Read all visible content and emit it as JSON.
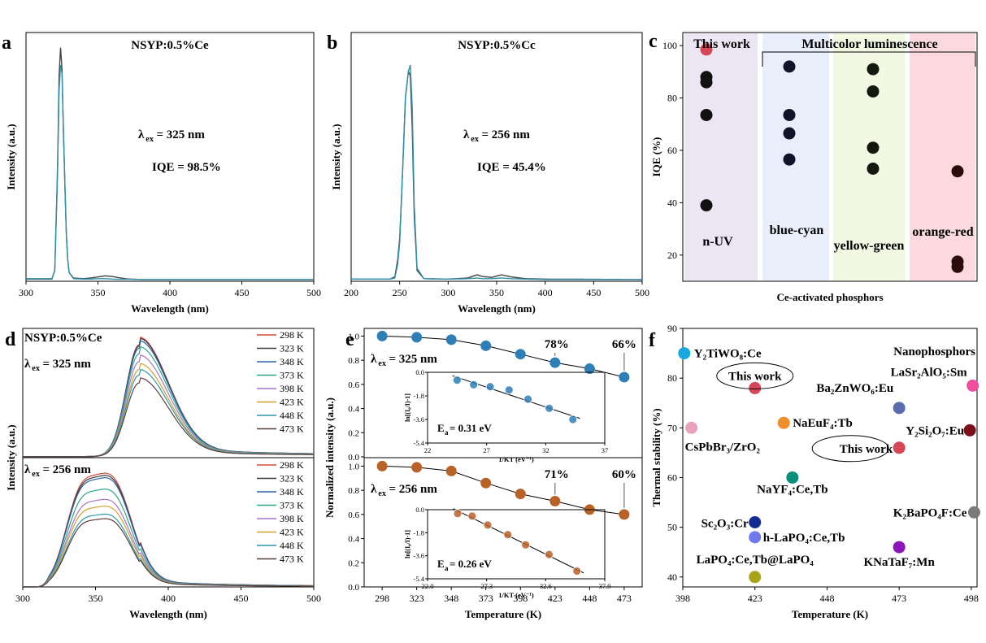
{
  "chart_data": [
    {
      "id": "a",
      "type": "line",
      "panel_letter": "a",
      "title": "NSYP:0.5%Ce",
      "xlabel": "Wavelength (nm)",
      "ylabel": "Intensity (a.u.)",
      "xlim": [
        300,
        500
      ],
      "ylim": [
        0,
        1.15
      ],
      "xticks": [
        "300",
        "350",
        "400",
        "450",
        "500"
      ],
      "ann": {
        "l": "λ",
        "sub": "ex",
        "r": " = 325 nm",
        "iqe": "IQE = 98.5%"
      },
      "series": [
        {
          "name": "reference",
          "color": "#444444",
          "x": [
            300,
            318,
            320,
            322,
            323,
            324,
            325,
            326,
            327,
            328,
            329,
            330,
            333,
            340,
            345,
            350,
            355,
            360,
            365,
            370,
            380,
            400,
            500
          ],
          "y": [
            0.01,
            0.01,
            0.05,
            0.55,
            0.95,
            1.08,
            0.98,
            0.7,
            0.45,
            0.22,
            0.1,
            0.04,
            0.015,
            0.012,
            0.015,
            0.02,
            0.025,
            0.022,
            0.016,
            0.011,
            0.008,
            0.008,
            0.008
          ]
        },
        {
          "name": "sample",
          "color": "#2f8fa8",
          "x": [
            300,
            318,
            320,
            322,
            323,
            324,
            325,
            326,
            327,
            328,
            329,
            330,
            333,
            340,
            345,
            350,
            355,
            360,
            365,
            370,
            380,
            400,
            500
          ],
          "y": [
            0.012,
            0.012,
            0.05,
            0.52,
            0.88,
            1.0,
            0.96,
            0.7,
            0.45,
            0.22,
            0.1,
            0.04,
            0.012,
            0.01,
            0.01,
            0.012,
            0.012,
            0.01,
            0.009,
            0.009,
            0.008,
            0.008,
            0.008
          ]
        }
      ]
    },
    {
      "id": "b",
      "type": "line",
      "panel_letter": "b",
      "title": "NSYP:0.5%Cc",
      "xlabel": "Wavelength (nm)",
      "ylabel": "Intensity (a.u.)",
      "xlim": [
        200,
        500
      ],
      "ylim": [
        0,
        1.15
      ],
      "xticks": [
        "200",
        "250",
        "300",
        "350",
        "400",
        "450",
        "500"
      ],
      "ann": {
        "l": "λ",
        "sub": "ex",
        "r": " = 256 nm",
        "iqe": "IQE = 45.4%"
      },
      "series": [
        {
          "name": "reference",
          "color": "#444444",
          "x": [
            200,
            240,
            245,
            248,
            250,
            253,
            256,
            259,
            261,
            263,
            265,
            268,
            275,
            300,
            320,
            330,
            335,
            345,
            355,
            365,
            380,
            400,
            500
          ],
          "y": [
            0.01,
            0.01,
            0.02,
            0.1,
            0.2,
            0.5,
            0.85,
            0.97,
            0.95,
            0.7,
            0.3,
            0.05,
            0.012,
            0.01,
            0.015,
            0.03,
            0.022,
            0.018,
            0.03,
            0.02,
            0.012,
            0.01,
            0.008
          ]
        },
        {
          "name": "sample",
          "color": "#2f8fa8",
          "x": [
            200,
            240,
            245,
            248,
            250,
            253,
            256,
            259,
            261,
            263,
            265,
            268,
            275,
            300,
            320,
            330,
            335,
            345,
            355,
            365,
            380,
            400,
            500
          ],
          "y": [
            0.01,
            0.01,
            0.015,
            0.08,
            0.18,
            0.5,
            0.85,
            0.97,
            1.0,
            0.8,
            0.35,
            0.06,
            0.012,
            0.01,
            0.012,
            0.015,
            0.012,
            0.012,
            0.015,
            0.012,
            0.01,
            0.008,
            0.008
          ]
        }
      ]
    },
    {
      "id": "c",
      "type": "scatter",
      "panel_letter": "c",
      "ylabel": "IQE (%)",
      "xlabel": "Ce-activated phosphors",
      "ylim": [
        10,
        105
      ],
      "yticks": [
        20,
        40,
        60,
        80,
        100
      ],
      "top_label": "Multicolor luminescence",
      "regions": [
        {
          "name": "n-UV",
          "header": "This work",
          "color": "#ece5f3",
          "marker": "#111111",
          "values": [
            98.5,
            88,
            86,
            73.5,
            39
          ]
        },
        {
          "name": "blue-cyan",
          "color": "#e8eefa",
          "marker": "#10142a",
          "values": [
            92,
            73.5,
            66.5,
            56.5
          ]
        },
        {
          "name": "yellow-green",
          "color": "#f1f9e3",
          "marker": "#121a10",
          "values": [
            91,
            82.5,
            61,
            53
          ]
        },
        {
          "name": "orange-red",
          "color": "#fbd9dc",
          "marker": "#2a0c0c",
          "values": [
            52,
            17.5,
            15.5
          ]
        }
      ]
    },
    {
      "id": "d1",
      "type": "line",
      "panel_letter": "d",
      "title": "NSYP:0.5%Ce",
      "ann": {
        "l": "λ",
        "sub": "ex",
        "r": " = 325 nm"
      },
      "ylabel": "Intensity (a.u.)",
      "xlim": [
        300,
        500
      ],
      "ylim": [
        0,
        1.15
      ],
      "peak": 380,
      "legend": [
        "298 K",
        "323 K",
        "348 K",
        "373 K",
        "398 K",
        "423 K",
        "448 K",
        "473 K"
      ],
      "scales": [
        1.0,
        0.99,
        0.97,
        0.92,
        0.85,
        0.78,
        0.73,
        0.66
      ]
    },
    {
      "id": "d2",
      "type": "line",
      "ann": {
        "l": "λ",
        "sub": "ex",
        "r": " = 256 nm"
      },
      "xlabel": "Wavelength (nm)",
      "xlim": [
        300,
        500
      ],
      "ylim": [
        0,
        1.15
      ],
      "xticks": [
        "300",
        "350",
        "400",
        "450",
        "500"
      ],
      "legend": [
        "298 K",
        "323 K",
        "348 K",
        "373 K",
        "398 K",
        "423 K",
        "448 K",
        "473 K"
      ],
      "scales": [
        1.0,
        0.98,
        0.96,
        0.86,
        0.77,
        0.71,
        0.64,
        0.6
      ]
    },
    {
      "id": "e1",
      "type": "line",
      "panel_letter": "e",
      "ann": {
        "l": "λ",
        "sub": "ex",
        "r": " = 325 nm"
      },
      "x": [
        298,
        323,
        348,
        373,
        398,
        423,
        448,
        473
      ],
      "y": [
        1.0,
        0.99,
        0.97,
        0.92,
        0.85,
        0.78,
        0.73,
        0.66
      ],
      "ylim": [
        0.0,
        1.05
      ],
      "yticks": [
        "0.0",
        "0.2",
        "0.4",
        "0.6",
        "0.8",
        "1.0"
      ],
      "labels": [
        "78%",
        "66%"
      ],
      "inset": {
        "xlabel": "1/KT (eV⁻¹)",
        "ylabel": "ln[(I₀/I)-1]",
        "ea": "E",
        "ea_sub": "a",
        "ea_val": " = 0.31 eV",
        "xlim": [
          22,
          37
        ],
        "ylim": [
          -5.4,
          0
        ],
        "xticks": [
          "22",
          "27",
          "32",
          "37"
        ],
        "yticks": [
          "0.0",
          "-1.8",
          "-3.6",
          "-5.4"
        ],
        "x": [
          24.5,
          25.9,
          27.3,
          28.9,
          30.5,
          32.3,
          34.3
        ],
        "y": [
          -0.6,
          -0.95,
          -1.1,
          -1.35,
          -2.05,
          -2.75,
          -3.6
        ]
      }
    },
    {
      "id": "e2",
      "type": "line",
      "ann": {
        "l": "λ",
        "sub": "ex",
        "r": " = 256 nm"
      },
      "x": [
        298,
        323,
        348,
        373,
        398,
        423,
        448,
        473
      ],
      "y": [
        1.0,
        0.99,
        0.96,
        0.86,
        0.77,
        0.71,
        0.64,
        0.6
      ],
      "ylim": [
        0.0,
        1.05
      ],
      "yticks": [
        "0.0",
        "0.2",
        "0.4",
        "0.6",
        "0.8",
        "1.0"
      ],
      "xticks": [
        "298",
        "323",
        "348",
        "373",
        "398",
        "423",
        "448",
        "473"
      ],
      "xlabel": "Temperature (K)",
      "ylabel": "Normalized intensity (a.u.)",
      "labels": [
        "71%",
        "60%"
      ],
      "inset": {
        "xlabel": "1/KT (eV⁻¹)",
        "ylabel": "ln[(I₀/I)-1]",
        "ea": "E",
        "ea_sub": "a",
        "ea_val": " = 0.26 eV",
        "xlim": [
          22.0,
          37.9
        ],
        "ylim": [
          -5.4,
          0
        ],
        "xticks": [
          "22.0",
          "27.3",
          "32.6",
          "37.9"
        ],
        "yticks": [
          "0.0",
          "-1.8",
          "-3.6",
          "-5.4"
        ],
        "x": [
          24.7,
          26.0,
          27.4,
          29.2,
          30.8,
          32.9,
          35.4
        ],
        "y": [
          -0.3,
          -0.5,
          -1.2,
          -1.95,
          -2.75,
          -3.5,
          -4.8
        ]
      }
    },
    {
      "id": "f",
      "type": "scatter",
      "panel_letter": "f",
      "xlabel": "Temperature (K)",
      "ylabel": "Thermal stability (%)",
      "xlim": [
        398,
        500
      ],
      "ylim": [
        38,
        90
      ],
      "xticks": [
        "398",
        "423",
        "448",
        "473",
        "498"
      ],
      "yticks": [
        "40",
        "50",
        "60",
        "70",
        "80",
        "90"
      ],
      "header": "Nanophosphors",
      "points": [
        {
          "label": "Y₂TiWO₈:Ce",
          "x": 398.5,
          "y": 85,
          "color": "#19a9e0"
        },
        {
          "label": "This work",
          "x": 423,
          "y": 78,
          "color": "#d64657",
          "work": true
        },
        {
          "label": "LaSr₂AlO₅:Sm",
          "x": 498.5,
          "y": 78.5,
          "color": "#ee4f9e"
        },
        {
          "label": "Ba₂ZnWO₆:Eu",
          "x": 473,
          "y": 74,
          "color": "#5b6cae"
        },
        {
          "label": "NaEuF₄:Tb",
          "x": 433,
          "y": 71,
          "color": "#ef8f2c"
        },
        {
          "label": "CsPbBr₃/ZrO₂",
          "x": 401,
          "y": 70,
          "color": "#e8a0bd"
        },
        {
          "label": "Y₂Si₂O₇:Eu",
          "x": 497.5,
          "y": 69.5,
          "color": "#7d0f1a"
        },
        {
          "label": "This work",
          "x": 473,
          "y": 66,
          "color": "#d64657",
          "work": true
        },
        {
          "label": "NaYF₄:Ce,Tb",
          "x": 436,
          "y": 60,
          "color": "#0a8f7f"
        },
        {
          "label": "K₂BaPO₄F:Ce",
          "x": 499,
          "y": 53,
          "color": "#7a7a7a"
        },
        {
          "label": "Sc₂O₃:Cr",
          "x": 423,
          "y": 51,
          "color": "#142b94"
        },
        {
          "label": "h-LaPO₄:Ce,Tb",
          "x": 423,
          "y": 48,
          "color": "#6f78ec"
        },
        {
          "label": "KNaTaF₇:Mn",
          "x": 473,
          "y": 46,
          "color": "#8b15b8"
        },
        {
          "label": "LaPO₄:Ce,Tb@LaPO₄",
          "x": 423,
          "y": 40,
          "color": "#a8a415"
        }
      ]
    }
  ],
  "colors": {
    "temps": [
      "#d9483f",
      "#3b3b3b",
      "#2b64a8",
      "#2ca38a",
      "#a873c8",
      "#d3a12a",
      "#2b9aa6",
      "#5e3c3c"
    ],
    "blue_dot": "#2e7fb6",
    "brown_dot": "#b86228",
    "work_text": "#d64657"
  }
}
